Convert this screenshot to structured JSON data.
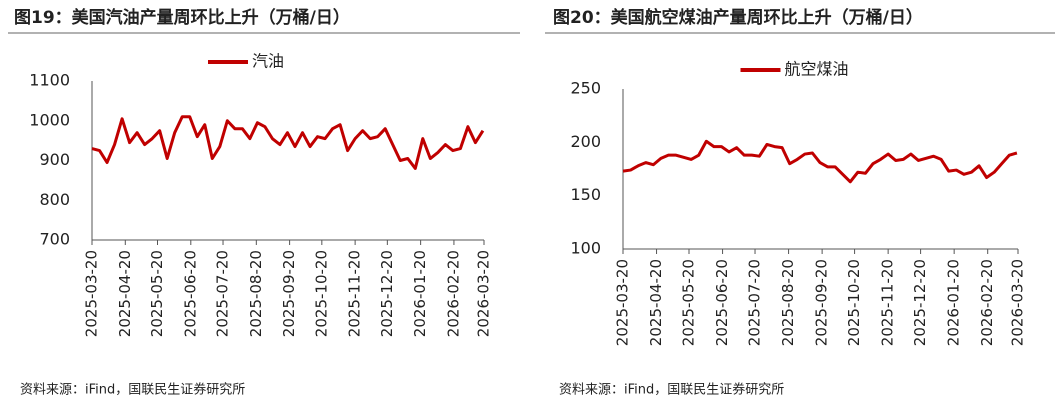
{
  "chart_data": [
    {
      "type": "line",
      "title": "图19：美国汽油产量周环比上升（万桶/日）",
      "source": "资料来源：iFind，国联民生证券研究所",
      "x": [
        "2025-03-20",
        "2025-03-27",
        "2025-04-03",
        "2025-04-10",
        "2025-04-17",
        "2025-04-24",
        "2025-05-01",
        "2025-05-08",
        "2025-05-15",
        "2025-05-22",
        "2025-05-29",
        "2025-06-05",
        "2025-06-12",
        "2025-06-19",
        "2025-06-26",
        "2025-07-03",
        "2025-07-10",
        "2025-07-17",
        "2025-07-24",
        "2025-07-31",
        "2025-08-07",
        "2025-08-14",
        "2025-08-21",
        "2025-08-28",
        "2025-09-04",
        "2025-09-11",
        "2025-09-18",
        "2025-09-25",
        "2025-10-02",
        "2025-10-09",
        "2025-10-16",
        "2025-10-23",
        "2025-10-30",
        "2025-11-06",
        "2025-11-13",
        "2025-11-20",
        "2025-11-27",
        "2025-12-04",
        "2025-12-11",
        "2025-12-18",
        "2025-12-25",
        "2026-01-01",
        "2026-01-08",
        "2026-01-15",
        "2026-01-22",
        "2026-01-29",
        "2026-02-05",
        "2026-02-12",
        "2026-02-19",
        "2026-02-26",
        "2026-03-05",
        "2026-03-12",
        "2026-03-19"
      ],
      "series": [
        {
          "name": "汽油",
          "color": "#c00000",
          "values": [
            930,
            925,
            895,
            940,
            1005,
            945,
            970,
            940,
            955,
            975,
            905,
            970,
            1010,
            1010,
            960,
            990,
            905,
            935,
            1000,
            980,
            980,
            955,
            995,
            985,
            955,
            940,
            970,
            935,
            970,
            935,
            960,
            955,
            980,
            990,
            925,
            955,
            975,
            955,
            960,
            980,
            940,
            900,
            905,
            880,
            955,
            905,
            920,
            940,
            925,
            930,
            985,
            945,
            975
          ]
        }
      ],
      "xlim": [
        "2025-03-20",
        "2026-03-20"
      ],
      "xticks": [
        "2025-03-20",
        "2025-04-20",
        "2025-05-20",
        "2025-06-20",
        "2025-07-20",
        "2025-08-20",
        "2025-09-20",
        "2025-10-20",
        "2025-11-20",
        "2025-12-20",
        "2026-01-20",
        "2026-02-20",
        "2026-03-20"
      ],
      "ylim": [
        700,
        1100
      ],
      "yticks": [
        700,
        800,
        900,
        1000,
        1100
      ],
      "grid": false,
      "legend": "top"
    },
    {
      "type": "line",
      "title": "图20：美国航空煤油产量周环比上升（万桶/日）",
      "source": "资料来源：iFind，国联民生证券研究所",
      "x": [
        "2025-03-20",
        "2025-03-27",
        "2025-04-03",
        "2025-04-10",
        "2025-04-17",
        "2025-04-24",
        "2025-05-01",
        "2025-05-08",
        "2025-05-15",
        "2025-05-22",
        "2025-05-29",
        "2025-06-05",
        "2025-06-12",
        "2025-06-19",
        "2025-06-26",
        "2025-07-03",
        "2025-07-10",
        "2025-07-17",
        "2025-07-24",
        "2025-07-31",
        "2025-08-07",
        "2025-08-14",
        "2025-08-21",
        "2025-08-28",
        "2025-09-04",
        "2025-09-11",
        "2025-09-18",
        "2025-09-25",
        "2025-10-02",
        "2025-10-09",
        "2025-10-16",
        "2025-10-23",
        "2025-10-30",
        "2025-11-06",
        "2025-11-13",
        "2025-11-20",
        "2025-11-27",
        "2025-12-04",
        "2025-12-11",
        "2025-12-18",
        "2025-12-25",
        "2026-01-01",
        "2026-01-08",
        "2026-01-15",
        "2026-01-22",
        "2026-01-29",
        "2026-02-05",
        "2026-02-12",
        "2026-02-19",
        "2026-02-26",
        "2026-03-05",
        "2026-03-12",
        "2026-03-19"
      ],
      "series": [
        {
          "name": "航空煤油",
          "color": "#c00000",
          "values": [
            173,
            174,
            178,
            181,
            179,
            185,
            188,
            188,
            186,
            184,
            188,
            201,
            196,
            196,
            191,
            195,
            188,
            188,
            187,
            198,
            196,
            195,
            180,
            184,
            189,
            190,
            181,
            177,
            177,
            170,
            163,
            172,
            171,
            180,
            184,
            189,
            183,
            184,
            189,
            183,
            185,
            187,
            184,
            173,
            174,
            170,
            172,
            178,
            167,
            172,
            180,
            188,
            190
          ]
        }
      ],
      "xlim": [
        "2025-03-20",
        "2026-03-20"
      ],
      "xticks": [
        "2025-03-20",
        "2025-04-20",
        "2025-05-20",
        "2025-06-20",
        "2025-07-20",
        "2025-08-20",
        "2025-09-20",
        "2025-10-20",
        "2025-11-20",
        "2025-12-20",
        "2026-01-20",
        "2026-02-20",
        "2026-03-20"
      ],
      "ylim": [
        100,
        250
      ],
      "yticks": [
        100,
        150,
        200,
        250
      ],
      "grid": false,
      "legend": "top"
    }
  ]
}
